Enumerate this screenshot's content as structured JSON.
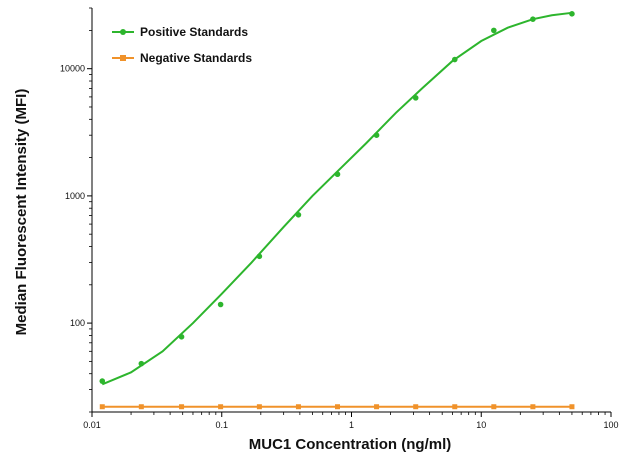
{
  "chart_data": {
    "type": "line",
    "xscale": "log",
    "yscale": "log",
    "xlim": [
      0.01,
      100
    ],
    "ylim": [
      20,
      30000
    ],
    "xlabel": "MUC1 Concentration (ng/ml)",
    "ylabel": "Median Fluorescent Intensity (MFI)",
    "x_ticks": [
      {
        "value": 0.01,
        "label": "0.01"
      },
      {
        "value": 0.1,
        "label": "0.1"
      },
      {
        "value": 1,
        "label": "1"
      },
      {
        "value": 10,
        "label": "10"
      },
      {
        "value": 100,
        "label": "100"
      }
    ],
    "y_ticks": [
      {
        "value": 100,
        "label": "100"
      },
      {
        "value": 1000,
        "label": "1000"
      },
      {
        "value": 10000,
        "label": "10000"
      }
    ],
    "legend_position": "top-left",
    "series": [
      {
        "name": "Positive Standards",
        "color": "#2db52d",
        "marker": "circle",
        "x": [
          0.012,
          0.024,
          0.049,
          0.098,
          0.195,
          0.39,
          0.78,
          1.56,
          3.125,
          6.25,
          12.5,
          25,
          50
        ],
        "y": [
          35,
          48,
          78,
          140,
          335,
          710,
          1480,
          3000,
          5900,
          11800,
          20000,
          24500,
          27000
        ],
        "fit": {
          "x": [
            0.012,
            0.02,
            0.035,
            0.06,
            0.1,
            0.17,
            0.3,
            0.5,
            0.8,
            1.3,
            2.2,
            3.5,
            6,
            10,
            16,
            25,
            35,
            50
          ],
          "y": [
            33,
            41,
            60,
            100,
            170,
            300,
            570,
            1000,
            1600,
            2600,
            4500,
            7000,
            11500,
            16500,
            21000,
            24500,
            26300,
            27500
          ]
        }
      },
      {
        "name": "Negative Standards",
        "color": "#f0922a",
        "marker": "square",
        "x": [
          0.012,
          0.024,
          0.049,
          0.098,
          0.195,
          0.39,
          0.78,
          1.56,
          3.125,
          6.25,
          12.5,
          25,
          50
        ],
        "y": [
          22,
          22,
          22,
          22,
          22,
          22,
          22,
          22,
          22,
          22,
          22,
          22,
          22
        ]
      }
    ]
  }
}
